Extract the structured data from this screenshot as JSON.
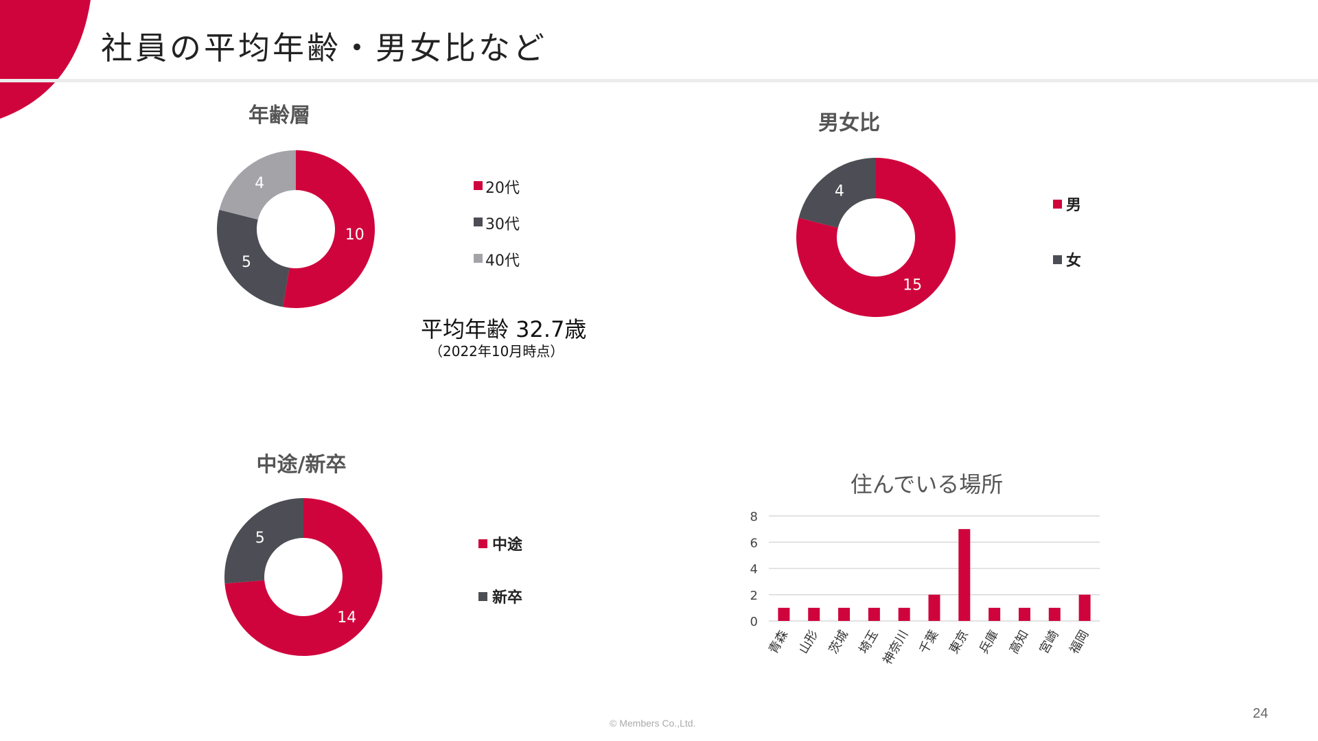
{
  "slide": {
    "title": "社員の平均年齢・男女比など",
    "footer": "© Members Co.,Ltd.",
    "page_number": "24",
    "accent_color": "#d0043c"
  },
  "average_age": {
    "main": "平均年齢 32.7歳",
    "note": "（2022年10月時点）"
  },
  "chart_data": [
    {
      "type": "pie",
      "title": "年齢層",
      "categories": [
        "20代",
        "30代",
        "40代"
      ],
      "values": [
        10,
        5,
        4
      ],
      "colors": [
        "#d0043c",
        "#4d4d55",
        "#a3a3a8"
      ]
    },
    {
      "type": "pie",
      "title": "男女比",
      "categories": [
        "男",
        "女"
      ],
      "values": [
        15,
        4
      ],
      "colors": [
        "#d0043c",
        "#4d4d55"
      ]
    },
    {
      "type": "pie",
      "title": "中途/新卒",
      "categories": [
        "中途",
        "新卒"
      ],
      "values": [
        14,
        5
      ],
      "colors": [
        "#d0043c",
        "#4d4d55"
      ]
    },
    {
      "type": "bar",
      "title": "住んでいる場所",
      "categories": [
        "青森",
        "山形",
        "茨城",
        "埼玉",
        "神奈川",
        "千葉",
        "東京",
        "兵庫",
        "高知",
        "宮崎",
        "福岡"
      ],
      "values": [
        1,
        1,
        1,
        1,
        1,
        2,
        7,
        1,
        1,
        1,
        2
      ],
      "ylim": [
        0,
        8
      ],
      "yticks": [
        0,
        2,
        4,
        6,
        8
      ],
      "grid": true,
      "color": "#d0043c"
    }
  ]
}
